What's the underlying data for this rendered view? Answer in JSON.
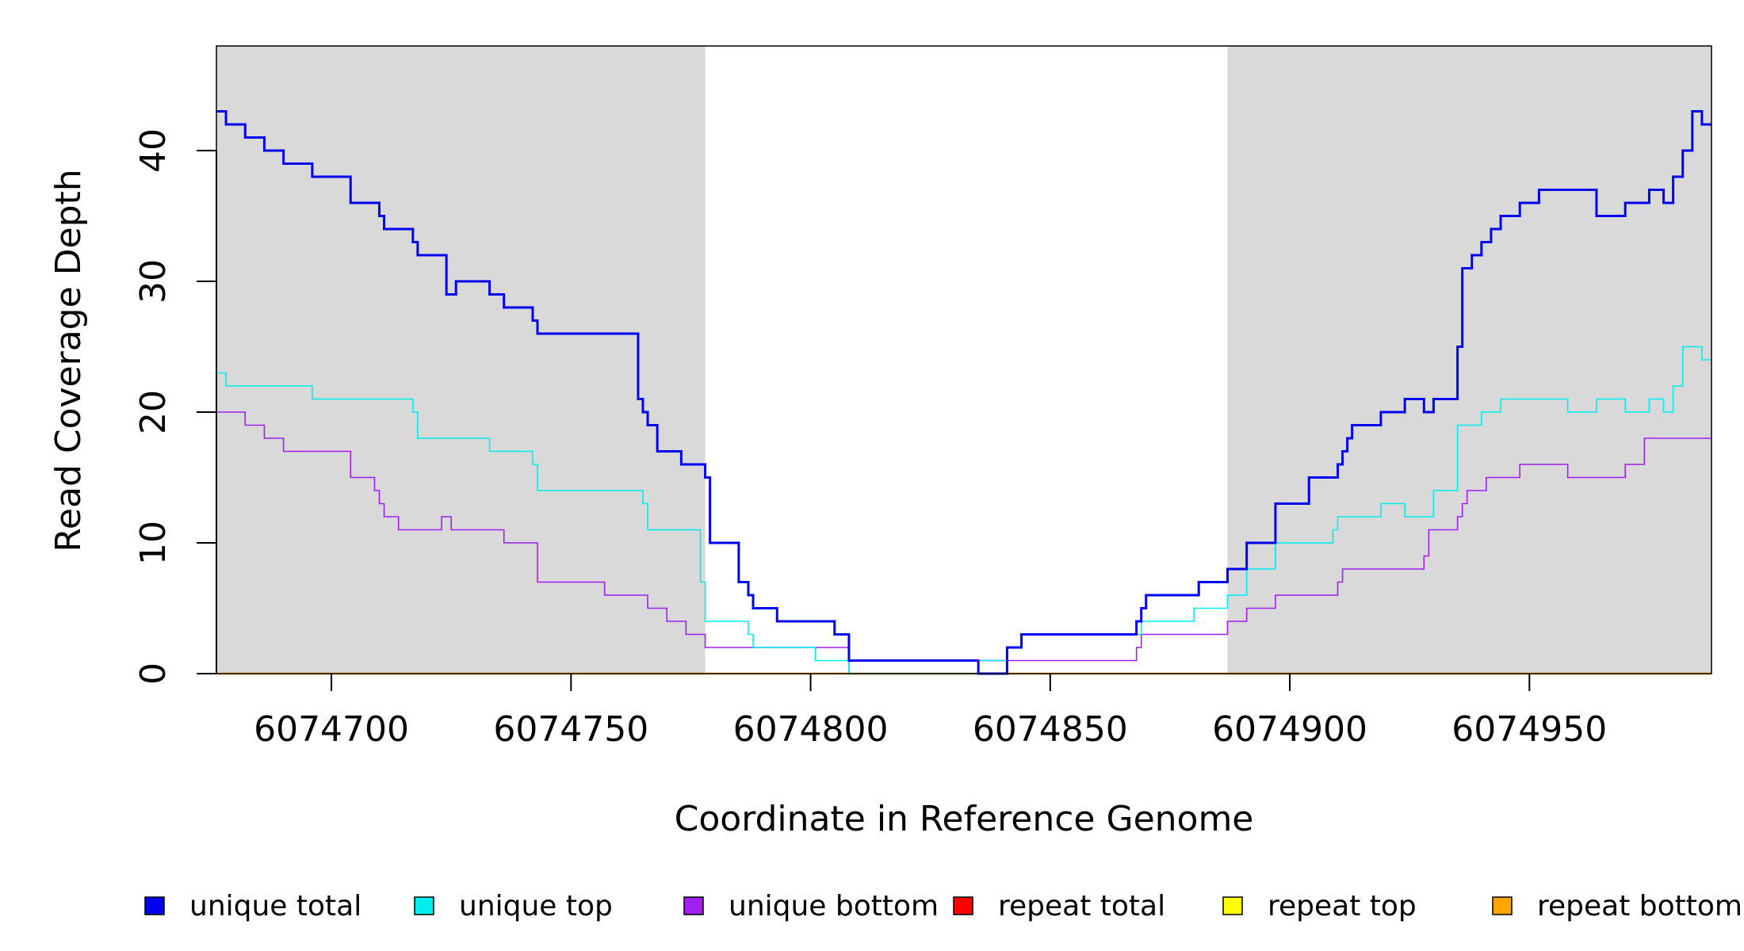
{
  "chart_data": {
    "type": "line",
    "title": "",
    "xlabel": "Coordinate in Reference Genome",
    "ylabel": "Read Coverage Depth",
    "xlim": [
      6074676,
      6074988
    ],
    "ylim": [
      0,
      48
    ],
    "x_ticks": [
      6074700,
      6074750,
      6074800,
      6074850,
      6074900,
      6074950
    ],
    "x_tick_labels": [
      "6074700",
      "6074750",
      "6074800",
      "6074850",
      "6074900",
      "6074950"
    ],
    "y_ticks": [
      0,
      10,
      20,
      30,
      40
    ],
    "y_tick_labels": [
      "0",
      "10",
      "20",
      "30",
      "40"
    ],
    "shaded_regions": [
      {
        "x0": 6074676,
        "x1": 6074778,
        "color": "#d9d9d9"
      },
      {
        "x0": 6074887,
        "x1": 6074988,
        "color": "#d9d9d9"
      }
    ],
    "legend": {
      "placement": "bottom",
      "entries": [
        {
          "label": "unique total",
          "color": "#0000ee"
        },
        {
          "label": "unique top",
          "color": "#00eeee"
        },
        {
          "label": "unique bottom",
          "color": "#a020f0"
        },
        {
          "label": "repeat total",
          "color": "#ff0000"
        },
        {
          "label": "repeat top",
          "color": "#ffff00"
        },
        {
          "label": "repeat bottom",
          "color": "#ffa500"
        }
      ]
    },
    "series": [
      {
        "name": "unique total",
        "color": "#0000ee",
        "width": 3,
        "x": [
          6074676,
          6074678,
          6074682,
          6074686,
          6074690,
          6074696,
          6074704,
          6074710,
          6074711,
          6074717,
          6074718,
          6074724,
          6074726,
          6074733,
          6074736,
          6074742,
          6074743,
          6074764,
          6074765,
          6074766,
          6074768,
          6074773,
          6074778,
          6074779,
          6074785,
          6074787,
          6074788,
          6074793,
          6074805,
          6074808,
          6074835,
          6074841,
          6074844,
          6074868,
          6074869,
          6074870,
          6074881,
          6074887,
          6074891,
          6074897,
          6074904,
          6074910,
          6074911,
          6074912,
          6074913,
          6074919,
          6074924,
          6074928,
          6074930,
          6074935,
          6074936,
          6074938,
          6074940,
          6074942,
          6074944,
          6074948,
          6074952,
          6074964,
          6074970,
          6074975,
          6074978,
          6074980,
          6074982,
          6074984,
          6074986
        ],
        "y": [
          43,
          42,
          41,
          40,
          39,
          38,
          36,
          35,
          34,
          33,
          32,
          29,
          30,
          29,
          28,
          27,
          26,
          21,
          20,
          19,
          17,
          16,
          15,
          10,
          7,
          6,
          5,
          4,
          3,
          1,
          0,
          2,
          3,
          4,
          5,
          6,
          7,
          8,
          10,
          13,
          15,
          16,
          17,
          18,
          19,
          20,
          21,
          20,
          21,
          25,
          31,
          32,
          33,
          34,
          35,
          36,
          37,
          35,
          36,
          37,
          36,
          38,
          40,
          43,
          42
        ]
      },
      {
        "name": "unique top",
        "color": "#00eeee",
        "width": 1.6,
        "x": [
          6074676,
          6074678,
          6074696,
          6074717,
          6074718,
          6074733,
          6074742,
          6074743,
          6074765,
          6074766,
          6074777,
          6074778,
          6074787,
          6074788,
          6074793,
          6074801,
          6074808,
          6074835,
          6074841,
          6074844,
          6074869,
          6074880,
          6074887,
          6074891,
          6074897,
          6074909,
          6074910,
          6074911,
          6074919,
          6074924,
          6074928,
          6074930,
          6074935,
          6074940,
          6074944,
          6074948,
          6074958,
          6074964,
          6074970,
          6074975,
          6074978,
          6074980,
          6074982,
          6074986
        ],
        "y": [
          23,
          22,
          21,
          20,
          18,
          17,
          16,
          14,
          13,
          11,
          7,
          4,
          3,
          2,
          2,
          1,
          0,
          1,
          2,
          3,
          4,
          5,
          6,
          8,
          10,
          11,
          12,
          12,
          13,
          12,
          12,
          14,
          19,
          20,
          21,
          21,
          20,
          21,
          20,
          21,
          20,
          22,
          25,
          24
        ]
      },
      {
        "name": "unique bottom",
        "color": "#a020f0",
        "width": 1.6,
        "x": [
          6074676,
          6074682,
          6074686,
          6074690,
          6074704,
          6074709,
          6074710,
          6074711,
          6074714,
          6074717,
          6074723,
          6074725,
          6074736,
          6074743,
          6074757,
          6074766,
          6074770,
          6074774,
          6074778,
          6074784,
          6074808,
          6074835,
          6074868,
          6074869,
          6074887,
          6074891,
          6074897,
          6074910,
          6074911,
          6074912,
          6074928,
          6074929,
          6074930,
          6074935,
          6074936,
          6074937,
          6074938,
          6074941,
          6074948,
          6074958,
          6074970,
          6074974,
          6074978
        ],
        "y": [
          20,
          19,
          18,
          17,
          15,
          14,
          13,
          12,
          11,
          11,
          12,
          11,
          10,
          7,
          6,
          5,
          4,
          3,
          2,
          2,
          0,
          1,
          2,
          3,
          4,
          5,
          6,
          7,
          8,
          8,
          9,
          11,
          11,
          12,
          13,
          14,
          14,
          15,
          16,
          15,
          16,
          18,
          18
        ]
      },
      {
        "name": "repeat total",
        "color": "#ff0000",
        "width": 2,
        "x": [
          6074676,
          6074988
        ],
        "y": [
          0,
          0
        ]
      },
      {
        "name": "repeat top",
        "color": "#ffff00",
        "width": 2,
        "x": [
          6074676,
          6074988
        ],
        "y": [
          0,
          0
        ]
      },
      {
        "name": "repeat bottom",
        "color": "#ffa500",
        "width": 2.5,
        "x": [
          6074676,
          6074988
        ],
        "y": [
          0,
          0
        ]
      }
    ]
  }
}
